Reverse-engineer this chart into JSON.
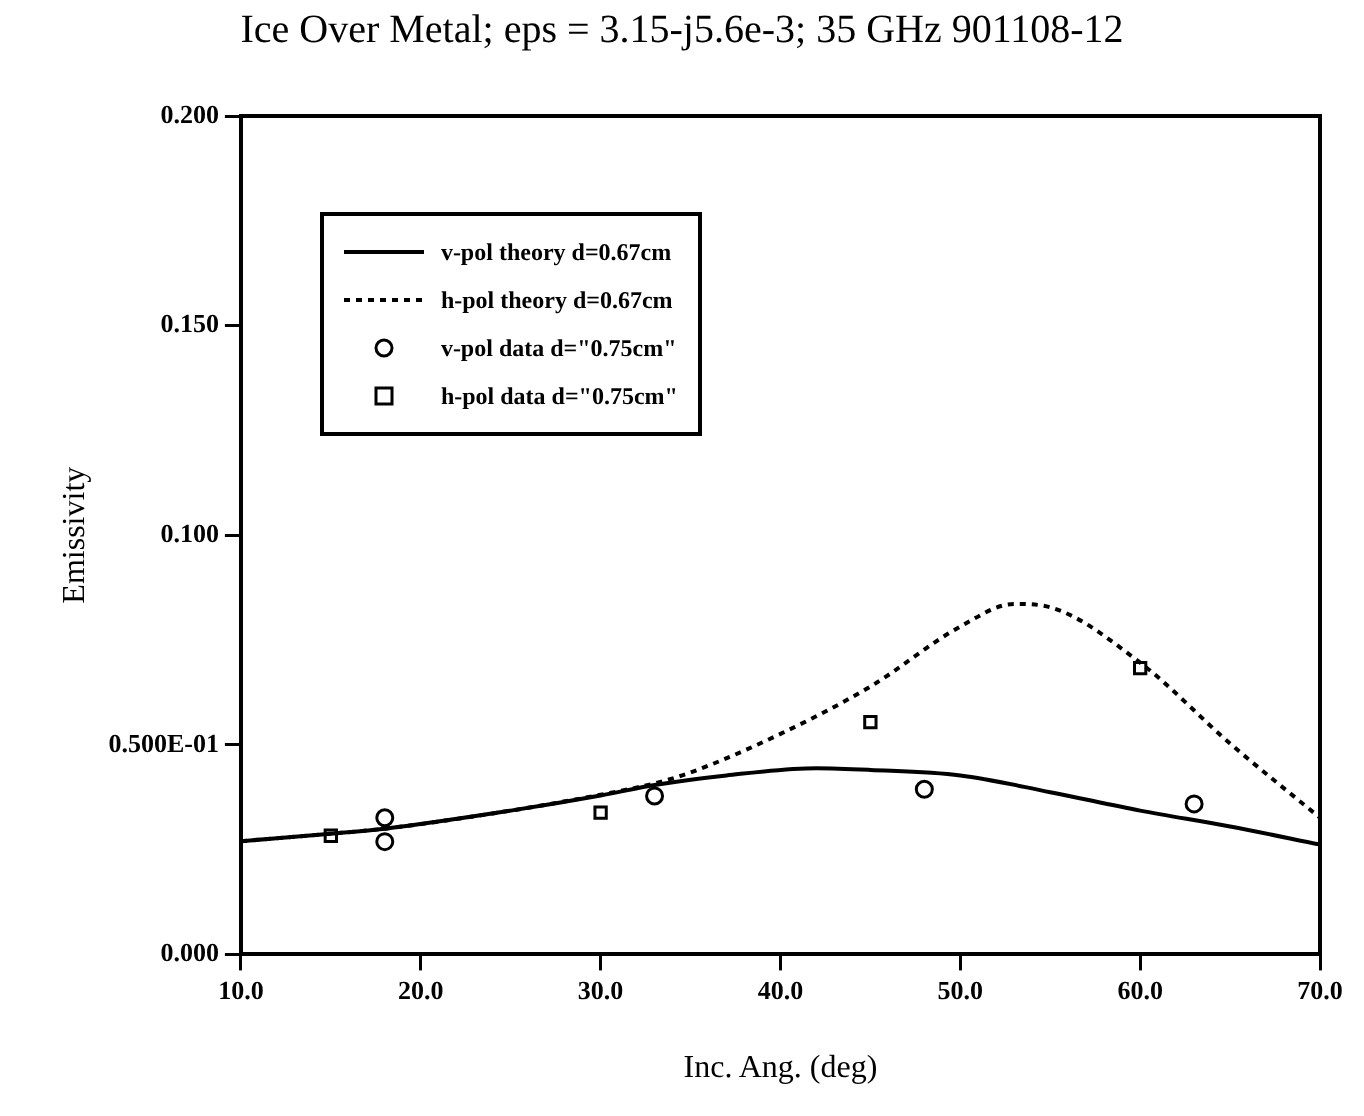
{
  "chart_data": {
    "type": "line",
    "title": "Ice Over Metal; eps = 3.15-j5.6e-3; 35 GHz 901108-12",
    "xlabel": "Inc. Ang. (deg)",
    "ylabel": "Emissivity",
    "xlim": [
      10,
      70
    ],
    "xticks": [
      {
        "value": 10,
        "label": "10.0"
      },
      {
        "value": 20,
        "label": "20.0"
      },
      {
        "value": 30,
        "label": "30.0"
      },
      {
        "value": 40,
        "label": "40.0"
      },
      {
        "value": 50,
        "label": "50.0"
      },
      {
        "value": 60,
        "label": "60.0"
      },
      {
        "value": 70,
        "label": "70.0"
      }
    ],
    "ylim": [
      0,
      0.2
    ],
    "yticks": [
      {
        "value": 0,
        "label": "0.000"
      },
      {
        "value": 0.05,
        "label": "0.500E-01"
      },
      {
        "value": 0.1,
        "label": "0.100"
      },
      {
        "value": 0.15,
        "label": "0.150"
      },
      {
        "value": 0.2,
        "label": "0.200"
      }
    ],
    "legend": "top left",
    "series": [
      {
        "name": "v-pol theory d=0.67cm",
        "type": "line",
        "color": "#000000",
        "line_style": "solid",
        "marker": "none",
        "x": [
          10,
          15,
          18,
          25,
          30,
          33,
          37,
          42,
          45,
          50,
          55,
          60,
          65,
          70
        ],
        "values": [
          0.027,
          0.0288,
          0.03,
          0.0343,
          0.0379,
          0.0404,
          0.0427,
          0.0444,
          0.044,
          0.0427,
          0.0387,
          0.0343,
          0.0305,
          0.0262
        ]
      },
      {
        "name": "h-pol theory d=0.67cm",
        "type": "line",
        "color": "#000000",
        "line_style": "dotted",
        "marker": "none",
        "x": [
          10,
          15,
          18,
          25,
          30,
          33,
          35,
          40,
          45,
          50,
          53,
          55,
          60,
          65,
          70
        ],
        "values": [
          0.027,
          0.0288,
          0.03,
          0.0343,
          0.0381,
          0.0408,
          0.0434,
          0.0526,
          0.0639,
          0.0782,
          0.0836,
          0.0828,
          0.0696,
          0.0503,
          0.0326
        ]
      },
      {
        "name": "v-pol data d=\"0.75cm\"",
        "type": "scatter",
        "color": "#000000",
        "marker": "circle",
        "x": [
          18,
          18,
          33,
          48,
          63
        ],
        "values": [
          0.0326,
          0.0269,
          0.0378,
          0.0394,
          0.0359
        ]
      },
      {
        "name": "h-pol data d=\"0.75cm\"",
        "type": "scatter",
        "color": "#000000",
        "marker": "square",
        "x": [
          15,
          30,
          45,
          60
        ],
        "values": [
          0.0283,
          0.0338,
          0.0554,
          0.0683
        ]
      }
    ]
  }
}
